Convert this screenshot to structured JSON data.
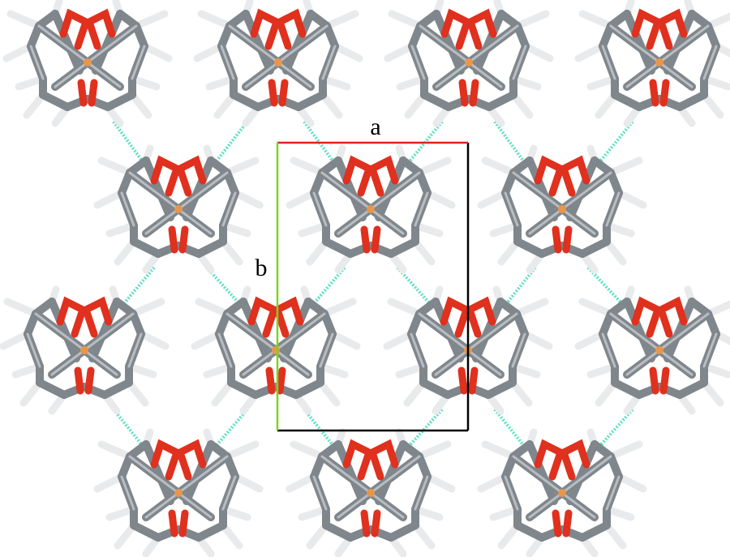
{
  "axis_labels": {
    "a": "a",
    "b": "b"
  }
}
